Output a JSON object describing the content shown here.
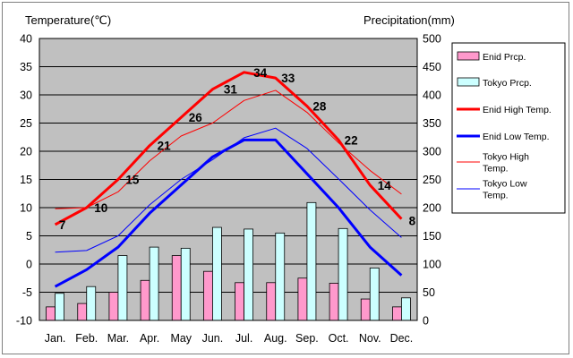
{
  "chart_data": {
    "type": "bar",
    "categories": [
      "Jan.",
      "Feb.",
      "Mar.",
      "Apr.",
      "May",
      "Jun.",
      "Jul.",
      "Aug.",
      "Sep.",
      "Oct.",
      "Nov.",
      "Dec."
    ],
    "ylabel_left": "Temperature(℃)",
    "ylabel_right": "Precipitation(mm)",
    "ylim_left": [
      -10,
      40
    ],
    "ylim_right": [
      0,
      500
    ],
    "yticks_left": [
      "40",
      "35",
      "30",
      "25",
      "20",
      "15",
      "10",
      "5",
      "0",
      "-5",
      "-10"
    ],
    "yticks_right": [
      "500",
      "450",
      "400",
      "350",
      "300",
      "250",
      "200",
      "150",
      "100",
      "50",
      "0"
    ],
    "series": [
      {
        "name": "Enid Prcp.",
        "kind": "bar",
        "axis": "right",
        "color": "#ff99cc",
        "values": [
          24,
          30,
          50,
          71,
          115,
          87,
          67,
          67,
          75,
          66,
          38,
          24
        ]
      },
      {
        "name": "Tokyo Prcp.",
        "kind": "bar",
        "axis": "right",
        "color": "#ccffff",
        "values": [
          48,
          60,
          115,
          130,
          128,
          165,
          162,
          155,
          209,
          163,
          93,
          40
        ]
      },
      {
        "name": "Enid High Temp.",
        "kind": "line",
        "axis": "left",
        "color": "#ff0000",
        "values": [
          7,
          10,
          15,
          21,
          26,
          31,
          34,
          33,
          28,
          22,
          14,
          8
        ]
      },
      {
        "name": "Enid Low Temp.",
        "kind": "line",
        "axis": "left",
        "color": "#0000ff",
        "values": [
          -4,
          -1,
          3,
          9,
          14,
          19,
          22,
          22,
          16,
          10,
          3,
          -2
        ]
      },
      {
        "name": "Tokyo High Temp.",
        "kind": "line",
        "axis": "left",
        "color": "#ff0000",
        "values": [
          9.8,
          10.0,
          12.8,
          18.3,
          22.7,
          25.0,
          29.0,
          30.8,
          26.9,
          21.5,
          16.6,
          12.4
        ]
      },
      {
        "name": "Tokyo Low Temp.",
        "kind": "line",
        "axis": "left",
        "color": "#0000ff",
        "values": [
          2.1,
          2.4,
          5.0,
          10.5,
          15.0,
          18.5,
          22.4,
          24.1,
          20.5,
          15.1,
          9.6,
          4.7
        ]
      }
    ],
    "data_labels": [
      "7",
      "10",
      "15",
      "21",
      "26",
      "31",
      "34",
      "33",
      "28",
      "22",
      "14",
      "8"
    ],
    "legend_position": "right",
    "legend": [
      "Enid Prcp.",
      "Tokyo Prcp.",
      "Enid High Temp.",
      "Enid Low Temp.",
      "Tokyo High\nTemp.",
      "Tokyo Low\nTemp."
    ],
    "grid": true,
    "plot_background": "#c0c0c0"
  }
}
